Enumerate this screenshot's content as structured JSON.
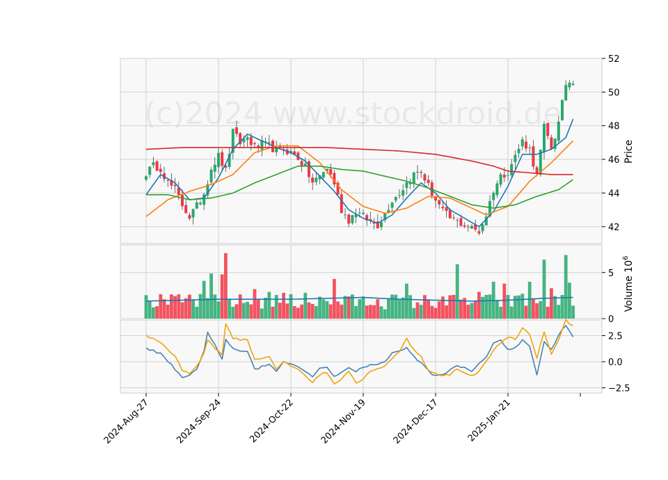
{
  "chart_data": {
    "type": "candlestick",
    "watermark": "(c)2024 www.stockdroid.de",
    "x_tick_labels": [
      "2024-Aug-27",
      "2024-Sep-24",
      "2024-Oct-22",
      "2024-Nov-19",
      "2024-Dec-17",
      "2025-Jan-21"
    ],
    "x_tick_index": [
      0,
      20,
      40,
      60,
      80,
      100
    ],
    "n_bars": 119,
    "colors": {
      "up": "#26a96c",
      "down": "#f23645",
      "ma_fast": "#1f77b4",
      "ma_mid": "#ff7f0e",
      "ma_slow": "#2ca02c",
      "ma_long": "#d62728",
      "vol_ma": "#1f77b4",
      "osc_1": "#4682b4",
      "osc_2": "#f0a30a"
    },
    "price_panel": {
      "ylabel": "Price",
      "ylim": [
        41.0,
        52.0
      ],
      "yticks": [
        42,
        44,
        46,
        48,
        50,
        52
      ],
      "close_keypoints": [
        [
          0,
          45.2
        ],
        [
          2,
          45.6
        ],
        [
          4,
          45.5
        ],
        [
          6,
          44.6
        ],
        [
          8,
          44.2
        ],
        [
          10,
          43.3
        ],
        [
          12,
          42.6
        ],
        [
          14,
          43.2
        ],
        [
          16,
          44.0
        ],
        [
          18,
          45.5
        ],
        [
          20,
          46.2
        ],
        [
          22,
          45.3
        ],
        [
          24,
          47.6
        ],
        [
          26,
          47.0
        ],
        [
          28,
          47.3
        ],
        [
          30,
          46.7
        ],
        [
          32,
          46.9
        ],
        [
          34,
          46.8
        ],
        [
          36,
          46.5
        ],
        [
          38,
          46.6
        ],
        [
          40,
          46.4
        ],
        [
          42,
          46.1
        ],
        [
          44,
          45.5
        ],
        [
          46,
          44.6
        ],
        [
          48,
          45.0
        ],
        [
          50,
          45.5
        ],
        [
          52,
          44.6
        ],
        [
          54,
          43.0
        ],
        [
          56,
          42.4
        ],
        [
          58,
          42.9
        ],
        [
          60,
          42.6
        ],
        [
          62,
          42.3
        ],
        [
          64,
          42.1
        ],
        [
          66,
          42.8
        ],
        [
          68,
          43.6
        ],
        [
          70,
          44.0
        ],
        [
          72,
          44.6
        ],
        [
          74,
          45.1
        ],
        [
          76,
          45.3
        ],
        [
          78,
          44.4
        ],
        [
          80,
          43.6
        ],
        [
          82,
          42.9
        ],
        [
          84,
          42.5
        ],
        [
          86,
          42.3
        ],
        [
          88,
          42.1
        ],
        [
          90,
          41.9
        ],
        [
          92,
          41.7
        ],
        [
          94,
          42.7
        ],
        [
          96,
          44.2
        ],
        [
          98,
          45.0
        ],
        [
          100,
          45.3
        ],
        [
          102,
          46.2
        ],
        [
          104,
          47.1
        ],
        [
          106,
          46.6
        ],
        [
          108,
          45.0
        ],
        [
          110,
          47.9
        ],
        [
          112,
          46.7
        ],
        [
          114,
          48.1
        ],
        [
          116,
          50.5
        ],
        [
          118,
          50.7
        ]
      ],
      "moving_averages": [
        {
          "key": "ma_fast",
          "points": [
            [
              0,
              43.9
            ],
            [
              4,
              45.1
            ],
            [
              8,
              44.6
            ],
            [
              12,
              43.6
            ],
            [
              16,
              43.7
            ],
            [
              20,
              44.9
            ],
            [
              24,
              46.6
            ],
            [
              28,
              47.5
            ],
            [
              32,
              47.1
            ],
            [
              36,
              46.7
            ],
            [
              40,
              46.4
            ],
            [
              44,
              45.9
            ],
            [
              48,
              45.0
            ],
            [
              52,
              44.1
            ],
            [
              56,
              43.0
            ],
            [
              60,
              42.5
            ],
            [
              64,
              42.2
            ],
            [
              68,
              42.7
            ],
            [
              72,
              43.7
            ],
            [
              76,
              44.6
            ],
            [
              80,
              44.0
            ],
            [
              84,
              43.0
            ],
            [
              88,
              42.5
            ],
            [
              92,
              42.0
            ],
            [
              96,
              42.9
            ],
            [
              100,
              44.4
            ],
            [
              104,
              46.3
            ],
            [
              108,
              46.3
            ],
            [
              112,
              46.6
            ],
            [
              116,
              47.3
            ],
            [
              118,
              48.4
            ]
          ]
        },
        {
          "key": "ma_mid",
          "points": [
            [
              0,
              42.6
            ],
            [
              6,
              43.6
            ],
            [
              12,
              44.1
            ],
            [
              18,
              44.5
            ],
            [
              24,
              45.1
            ],
            [
              30,
              46.4
            ],
            [
              36,
              46.8
            ],
            [
              42,
              46.8
            ],
            [
              48,
              45.8
            ],
            [
              54,
              44.2
            ],
            [
              60,
              43.2
            ],
            [
              66,
              42.8
            ],
            [
              72,
              43.1
            ],
            [
              78,
              43.8
            ],
            [
              84,
              43.7
            ],
            [
              90,
              43.1
            ],
            [
              94,
              42.7
            ],
            [
              100,
              43.2
            ],
            [
              106,
              44.7
            ],
            [
              112,
              45.8
            ],
            [
              118,
              47.1
            ]
          ]
        },
        {
          "key": "ma_slow",
          "points": [
            [
              0,
              43.9
            ],
            [
              6,
              43.9
            ],
            [
              12,
              43.6
            ],
            [
              18,
              43.7
            ],
            [
              24,
              44.0
            ],
            [
              30,
              44.6
            ],
            [
              36,
              45.1
            ],
            [
              42,
              45.6
            ],
            [
              48,
              45.6
            ],
            [
              54,
              45.4
            ],
            [
              60,
              45.3
            ],
            [
              66,
              45.0
            ],
            [
              72,
              44.7
            ],
            [
              78,
              44.3
            ],
            [
              84,
              43.8
            ],
            [
              90,
              43.3
            ],
            [
              96,
              43.1
            ],
            [
              102,
              43.3
            ],
            [
              108,
              43.8
            ],
            [
              114,
              44.2
            ],
            [
              118,
              44.8
            ]
          ]
        },
        {
          "key": "ma_long",
          "points": [
            [
              0,
              46.6
            ],
            [
              10,
              46.7
            ],
            [
              30,
              46.7
            ],
            [
              50,
              46.7
            ],
            [
              60,
              46.6
            ],
            [
              70,
              46.5
            ],
            [
              80,
              46.3
            ],
            [
              90,
              45.9
            ],
            [
              96,
              45.6
            ],
            [
              100,
              45.3
            ],
            [
              106,
              45.2
            ],
            [
              112,
              45.1
            ],
            [
              118,
              45.1
            ]
          ]
        }
      ]
    },
    "volume_panel": {
      "ylabel": "Volume  10^6",
      "ylim": [
        0,
        8
      ],
      "yticks": [
        0,
        5
      ],
      "volume_ma_keypoints": [
        [
          0,
          1.9
        ],
        [
          20,
          2.1
        ],
        [
          40,
          2.1
        ],
        [
          50,
          2.2
        ],
        [
          60,
          2.3
        ],
        [
          70,
          2.1
        ],
        [
          80,
          2.0
        ],
        [
          90,
          1.9
        ],
        [
          100,
          2.0
        ],
        [
          110,
          2.2
        ],
        [
          118,
          2.3
        ]
      ],
      "spikes": [
        [
          5,
          2.1
        ],
        [
          12,
          2.6
        ],
        [
          16,
          4.1
        ],
        [
          18,
          4.9
        ],
        [
          21,
          4.8
        ],
        [
          22,
          7.1
        ],
        [
          30,
          3.2
        ],
        [
          34,
          2.9
        ],
        [
          38,
          2.8
        ],
        [
          44,
          2.8
        ],
        [
          52,
          4.3
        ],
        [
          56,
          2.4
        ],
        [
          64,
          2.1
        ],
        [
          68,
          2.6
        ],
        [
          72,
          3.8
        ],
        [
          82,
          2.4
        ],
        [
          86,
          5.9
        ],
        [
          92,
          2.9
        ],
        [
          96,
          4.0
        ],
        [
          99,
          3.8
        ],
        [
          104,
          2.7
        ],
        [
          106,
          4.0
        ],
        [
          110,
          6.4
        ],
        [
          112,
          3.3
        ],
        [
          116,
          6.9
        ],
        [
          117,
          3.9
        ]
      ]
    },
    "oscillator_panel": {
      "ylim": [
        -3.0,
        4.0
      ],
      "yticks": [
        -2.5,
        0.0,
        2.5
      ],
      "series_1_keypoints": [
        [
          0,
          1.3
        ],
        [
          4,
          0.8
        ],
        [
          8,
          -0.7
        ],
        [
          10,
          -1.6
        ],
        [
          12,
          -1.3
        ],
        [
          14,
          -0.8
        ],
        [
          16,
          1.0
        ],
        [
          17,
          2.8
        ],
        [
          19,
          1.7
        ],
        [
          21,
          0.2
        ],
        [
          22,
          2.2
        ],
        [
          24,
          1.2
        ],
        [
          28,
          0.9
        ],
        [
          30,
          -0.7
        ],
        [
          34,
          -0.3
        ],
        [
          36,
          -0.9
        ],
        [
          38,
          0.0
        ],
        [
          42,
          -0.4
        ],
        [
          46,
          -1.4
        ],
        [
          48,
          -0.6
        ],
        [
          50,
          -0.5
        ],
        [
          52,
          -1.4
        ],
        [
          54,
          -1.1
        ],
        [
          56,
          -0.5
        ],
        [
          58,
          -0.9
        ],
        [
          60,
          -0.6
        ],
        [
          62,
          -0.2
        ],
        [
          64,
          -0.3
        ],
        [
          66,
          0.0
        ],
        [
          68,
          0.8
        ],
        [
          70,
          1.0
        ],
        [
          72,
          1.4
        ],
        [
          74,
          0.5
        ],
        [
          76,
          -0.1
        ],
        [
          78,
          -0.9
        ],
        [
          80,
          -1.4
        ],
        [
          82,
          -1.2
        ],
        [
          84,
          -0.8
        ],
        [
          86,
          -0.3
        ],
        [
          88,
          -0.6
        ],
        [
          90,
          -1.0
        ],
        [
          92,
          -0.1
        ],
        [
          94,
          0.4
        ],
        [
          96,
          1.8
        ],
        [
          98,
          2.1
        ],
        [
          100,
          1.1
        ],
        [
          102,
          1.3
        ],
        [
          104,
          2.1
        ],
        [
          106,
          1.5
        ],
        [
          108,
          -1.3
        ],
        [
          110,
          2.0
        ],
        [
          112,
          1.1
        ],
        [
          114,
          2.6
        ],
        [
          116,
          3.5
        ],
        [
          118,
          2.3
        ]
      ],
      "series_2_keypoints": [
        [
          0,
          2.5
        ],
        [
          4,
          1.8
        ],
        [
          8,
          0.5
        ],
        [
          10,
          -0.8
        ],
        [
          12,
          -1.2
        ],
        [
          14,
          -0.5
        ],
        [
          16,
          0.9
        ],
        [
          17,
          2.1
        ],
        [
          19,
          1.3
        ],
        [
          21,
          0.7
        ],
        [
          22,
          3.6
        ],
        [
          24,
          2.2
        ],
        [
          28,
          2.1
        ],
        [
          30,
          0.2
        ],
        [
          34,
          0.5
        ],
        [
          36,
          -0.8
        ],
        [
          38,
          0.1
        ],
        [
          42,
          -0.8
        ],
        [
          46,
          -1.9
        ],
        [
          48,
          -1.2
        ],
        [
          50,
          -1.0
        ],
        [
          52,
          -2.1
        ],
        [
          54,
          -1.6
        ],
        [
          56,
          -0.9
        ],
        [
          58,
          -2.1
        ],
        [
          60,
          -1.6
        ],
        [
          62,
          -0.9
        ],
        [
          64,
          -0.7
        ],
        [
          66,
          -0.3
        ],
        [
          68,
          0.4
        ],
        [
          70,
          0.9
        ],
        [
          72,
          2.2
        ],
        [
          74,
          1.2
        ],
        [
          76,
          0.5
        ],
        [
          78,
          -0.8
        ],
        [
          80,
          -1.1
        ],
        [
          82,
          -1.4
        ],
        [
          84,
          -1.2
        ],
        [
          86,
          -0.7
        ],
        [
          88,
          -1.1
        ],
        [
          90,
          -1.4
        ],
        [
          92,
          -0.9
        ],
        [
          94,
          0.0
        ],
        [
          96,
          1.2
        ],
        [
          98,
          1.7
        ],
        [
          100,
          2.4
        ],
        [
          102,
          2.1
        ],
        [
          104,
          3.2
        ],
        [
          106,
          2.7
        ],
        [
          108,
          0.3
        ],
        [
          110,
          2.9
        ],
        [
          112,
          0.7
        ],
        [
          114,
          2.1
        ],
        [
          116,
          4.0
        ],
        [
          118,
          3.4
        ]
      ]
    }
  }
}
